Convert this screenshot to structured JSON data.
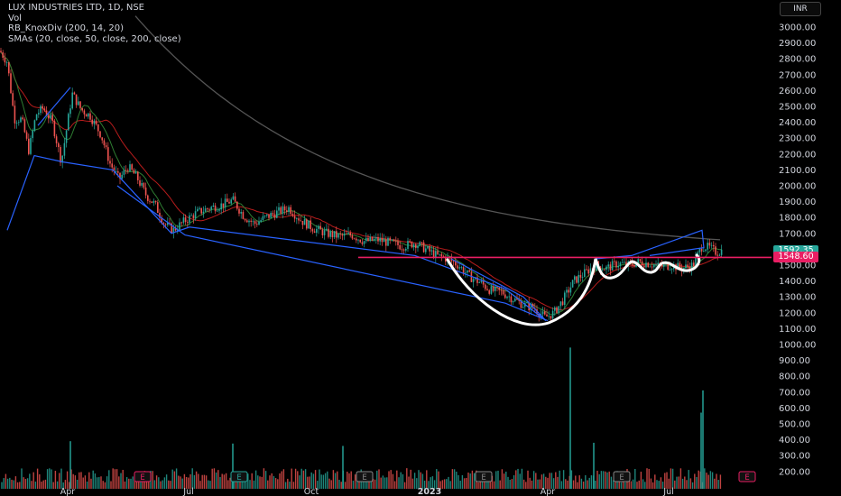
{
  "legend": {
    "title": "LUX INDUSTRIES LTD, 1D, NSE",
    "vol": "Vol",
    "indicator1": "RB_KnoxDiv (200, 14, 20)",
    "indicator2": "SMAs (20, close, 50, close, 200, close)"
  },
  "currency": "INR",
  "last_price": "1592.35",
  "level_price": "1548.60",
  "colors": {
    "background": "#000000",
    "level_line": "#e91e63",
    "last_price_tag": "#26a69a",
    "up_candle": "#26a69a",
    "down_candle": "#ef5350",
    "knox_lines": "#2962ff",
    "drawing": "#ffffff",
    "sma20": "#2e7d32",
    "sma50": "#b71c1c",
    "sma200": "#555555"
  },
  "chart_data": {
    "type": "candlestick",
    "y_axis_ticks": [
      "3000.00",
      "2900.00",
      "2800.00",
      "2700.00",
      "2600.00",
      "2500.00",
      "2400.00",
      "2300.00",
      "2200.00",
      "2100.00",
      "2000.00",
      "1900.00",
      "1800.00",
      "1700.00",
      "1600.00",
      "1500.00",
      "1400.00",
      "1300.00",
      "1200.00",
      "1100.00",
      "1000.00",
      "900.00",
      "800.00",
      "700.00",
      "600.00",
      "500.00",
      "400.00",
      "300.00",
      "200.00"
    ],
    "ylim": [
      150,
      3050
    ],
    "x_axis_labels": [
      "Apr",
      "Jul",
      "Oct",
      "2023",
      "Apr",
      "Jul"
    ],
    "earnings_markers": [
      {
        "label": "E",
        "color": "#e91e63"
      },
      {
        "label": "E",
        "color": "#26a69a"
      },
      {
        "label": "E",
        "color": "#888888"
      },
      {
        "label": "E",
        "color": "#888888"
      },
      {
        "label": "E",
        "color": "#888888"
      },
      {
        "label": "E",
        "color": "#e91e63"
      }
    ],
    "horizontal_level": 1548.6,
    "last_price": 1592.35,
    "price_path": [
      {
        "x": 0,
        "y": 2850
      },
      {
        "x": 8,
        "y": 2780
      },
      {
        "x": 16,
        "y": 2420
      },
      {
        "x": 24,
        "y": 2420
      },
      {
        "x": 32,
        "y": 2220
      },
      {
        "x": 40,
        "y": 2450
      },
      {
        "x": 48,
        "y": 2490
      },
      {
        "x": 58,
        "y": 2400
      },
      {
        "x": 68,
        "y": 2150
      },
      {
        "x": 80,
        "y": 2580
      },
      {
        "x": 90,
        "y": 2480
      },
      {
        "x": 100,
        "y": 2440
      },
      {
        "x": 112,
        "y": 2320
      },
      {
        "x": 122,
        "y": 2140
      },
      {
        "x": 132,
        "y": 2040
      },
      {
        "x": 142,
        "y": 2120
      },
      {
        "x": 152,
        "y": 2050
      },
      {
        "x": 162,
        "y": 1940
      },
      {
        "x": 172,
        "y": 1880
      },
      {
        "x": 182,
        "y": 1760
      },
      {
        "x": 192,
        "y": 1720
      },
      {
        "x": 205,
        "y": 1780
      },
      {
        "x": 218,
        "y": 1830
      },
      {
        "x": 232,
        "y": 1860
      },
      {
        "x": 246,
        "y": 1880
      },
      {
        "x": 258,
        "y": 1910
      },
      {
        "x": 270,
        "y": 1810
      },
      {
        "x": 282,
        "y": 1760
      },
      {
        "x": 294,
        "y": 1800
      },
      {
        "x": 306,
        "y": 1830
      },
      {
        "x": 320,
        "y": 1860
      },
      {
        "x": 334,
        "y": 1780
      },
      {
        "x": 348,
        "y": 1730
      },
      {
        "x": 362,
        "y": 1700
      },
      {
        "x": 376,
        "y": 1680
      },
      {
        "x": 390,
        "y": 1690
      },
      {
        "x": 404,
        "y": 1650
      },
      {
        "x": 418,
        "y": 1660
      },
      {
        "x": 432,
        "y": 1640
      },
      {
        "x": 446,
        "y": 1620
      },
      {
        "x": 460,
        "y": 1640
      },
      {
        "x": 472,
        "y": 1600
      },
      {
        "x": 484,
        "y": 1560
      },
      {
        "x": 496,
        "y": 1540
      },
      {
        "x": 508,
        "y": 1500
      },
      {
        "x": 520,
        "y": 1430
      },
      {
        "x": 532,
        "y": 1390
      },
      {
        "x": 544,
        "y": 1340
      },
      {
        "x": 556,
        "y": 1330
      },
      {
        "x": 568,
        "y": 1290
      },
      {
        "x": 580,
        "y": 1250
      },
      {
        "x": 592,
        "y": 1230
      },
      {
        "x": 604,
        "y": 1170
      },
      {
        "x": 614,
        "y": 1200
      },
      {
        "x": 624,
        "y": 1280
      },
      {
        "x": 636,
        "y": 1400
      },
      {
        "x": 648,
        "y": 1450
      },
      {
        "x": 660,
        "y": 1500
      },
      {
        "x": 672,
        "y": 1480
      },
      {
        "x": 684,
        "y": 1510
      },
      {
        "x": 696,
        "y": 1500
      },
      {
        "x": 708,
        "y": 1520
      },
      {
        "x": 720,
        "y": 1510
      },
      {
        "x": 732,
        "y": 1490
      },
      {
        "x": 744,
        "y": 1500
      },
      {
        "x": 756,
        "y": 1480
      },
      {
        "x": 768,
        "y": 1500
      },
      {
        "x": 778,
        "y": 1620
      },
      {
        "x": 786,
        "y": 1610
      },
      {
        "x": 794,
        "y": 1580
      },
      {
        "x": 800,
        "y": 1592
      }
    ],
    "volume_bars": [
      {
        "x": 78,
        "v": 300
      },
      {
        "x": 258,
        "v": 285
      },
      {
        "x": 380,
        "v": 270
      },
      {
        "x": 632,
        "v": 890
      },
      {
        "x": 658,
        "v": 290
      },
      {
        "x": 777,
        "v": 480
      },
      {
        "x": 779,
        "v": 620
      }
    ]
  }
}
